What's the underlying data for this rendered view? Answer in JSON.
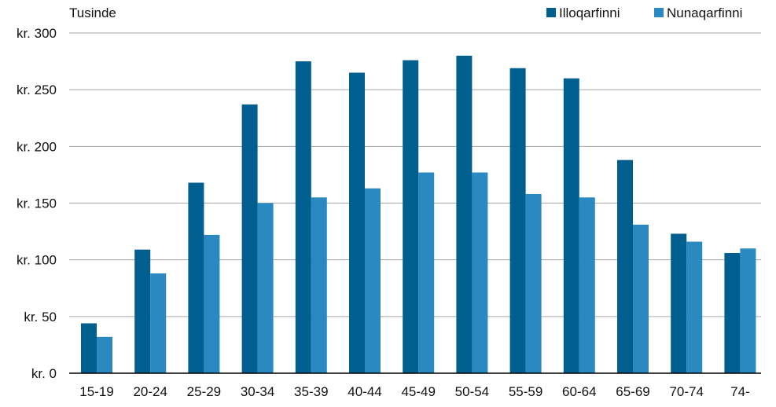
{
  "chart_data": {
    "type": "bar",
    "unit_label": "Tusinde",
    "categories": [
      "15-19",
      "20-24",
      "25-29",
      "30-34",
      "35-39",
      "40-44",
      "45-49",
      "50-54",
      "55-59",
      "60-64",
      "65-69",
      "70-74",
      "74-"
    ],
    "series": [
      {
        "name": "Illoqarfinni",
        "color": "#005f8f",
        "values": [
          44,
          109,
          168,
          237,
          275,
          265,
          276,
          280,
          269,
          260,
          188,
          123,
          106
        ]
      },
      {
        "name": "Nunaqarfinni",
        "color": "#2a89c0",
        "values": [
          32,
          88,
          122,
          150,
          155,
          163,
          177,
          177,
          158,
          155,
          131,
          116,
          110
        ]
      }
    ],
    "ylim": [
      0,
      300
    ],
    "yticks": [
      0,
      50,
      100,
      150,
      200,
      250,
      300
    ],
    "ytick_labels": [
      "kr. 0",
      "kr. 50",
      "kr. 100",
      "kr. 150",
      "kr. 200",
      "kr. 250",
      "kr. 300"
    ],
    "grid": true,
    "legend_position": "top-right",
    "grid_color": "#a6a6a6",
    "axis_color": "#000000"
  }
}
